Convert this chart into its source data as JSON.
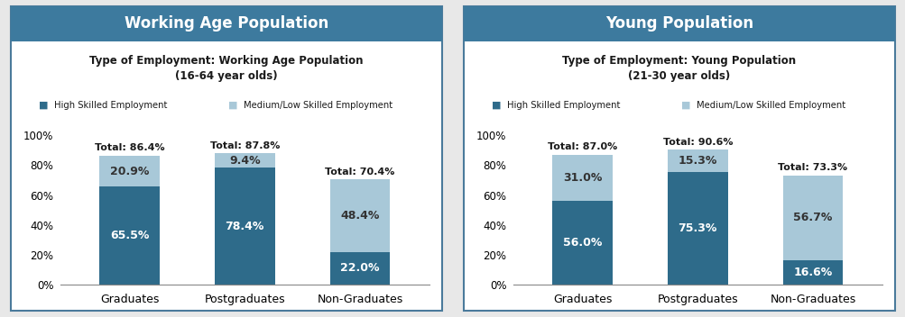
{
  "panel1": {
    "header": "Working Age Population",
    "title": "Type of Employment: Working Age Population\n(16-64 year olds)",
    "categories": [
      "Graduates",
      "Postgraduates",
      "Non-Graduates"
    ],
    "high_skilled": [
      65.5,
      78.4,
      22.0
    ],
    "med_low_skilled": [
      20.9,
      9.4,
      48.4
    ],
    "totals": [
      "Total: 86.4%",
      "Total: 87.8%",
      "Total: 70.4%"
    ]
  },
  "panel2": {
    "header": "Young Population",
    "title": "Type of Employment: Young Population\n(21-30 year olds)",
    "categories": [
      "Graduates",
      "Postgraduates",
      "Non-Graduates"
    ],
    "high_skilled": [
      56.0,
      75.3,
      16.6
    ],
    "med_low_skilled": [
      31.0,
      15.3,
      56.7
    ],
    "totals": [
      "Total: 87.0%",
      "Total: 90.6%",
      "Total: 73.3%"
    ]
  },
  "color_high": "#2E6B8A",
  "color_medlow": "#A8C8D8",
  "header_bg": "#3D7A9E",
  "header_text": "#FFFFFF",
  "panel_bg": "#FFFFFF",
  "fig_bg": "#E8E8E8",
  "border_color": "#4A7A9B",
  "label_high": "High Skilled Employment",
  "label_medlow": "Medium/Low Skilled Employment",
  "yticks": [
    0,
    20,
    40,
    60,
    80,
    100
  ],
  "ylim": [
    0,
    115
  ]
}
